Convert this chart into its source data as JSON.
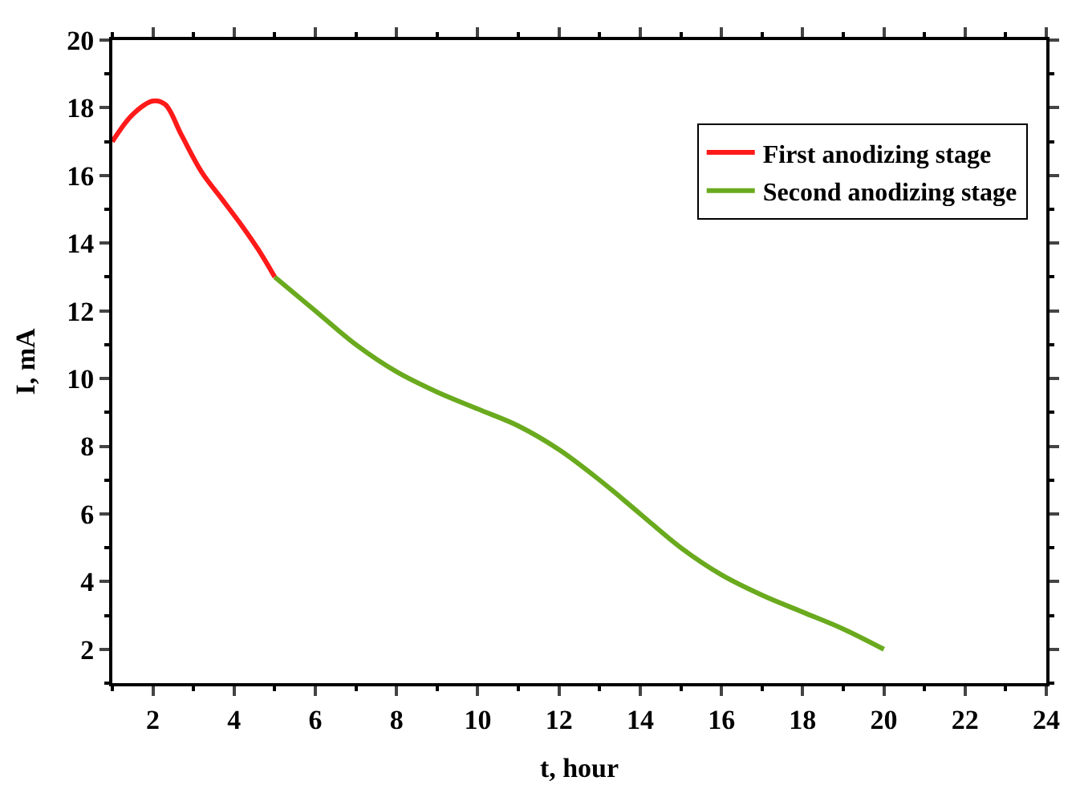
{
  "chart_data": {
    "type": "line",
    "xlabel": "t, hour",
    "ylabel": "I, mA",
    "xlim": [
      1,
      24
    ],
    "xticks": [
      2,
      4,
      6,
      8,
      10,
      12,
      14,
      16,
      18,
      20,
      22,
      24
    ],
    "ylim": [
      1,
      20
    ],
    "yticks": [
      2,
      4,
      6,
      8,
      10,
      12,
      14,
      16,
      18,
      20
    ],
    "legend": "top right",
    "marker": "none",
    "line_style": "solid",
    "series": [
      {
        "name": "First anodizing stage",
        "color": "#ff1a1a",
        "x": [
          1,
          1.5,
          2,
          2.3,
          2.7,
          3.2,
          3.7,
          4.2,
          4.6,
          5
        ],
        "values": [
          17,
          17.8,
          18.2,
          18.1,
          17.2,
          16.1,
          15.3,
          14.5,
          13.8,
          13
        ]
      },
      {
        "name": "Second anodizing stage",
        "color": "#6aaa1e",
        "x": [
          5,
          6,
          7,
          8,
          9,
          10,
          11,
          12,
          13,
          14,
          15,
          16,
          17,
          18,
          19,
          20
        ],
        "values": [
          13,
          12,
          11,
          10.2,
          9.6,
          9.1,
          8.6,
          7.9,
          7.0,
          6.0,
          5.0,
          4.2,
          3.6,
          3.1,
          2.6,
          2.0
        ]
      }
    ]
  }
}
